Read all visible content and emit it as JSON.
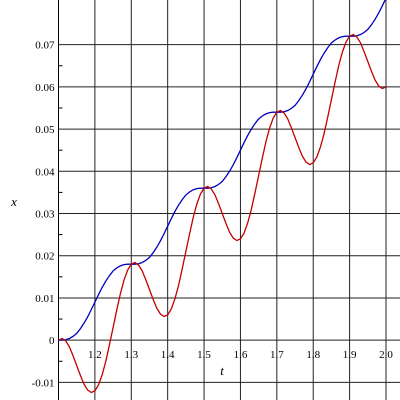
{
  "chart_data": {
    "type": "line",
    "xlabel": "t",
    "ylabel": "x",
    "x": [
      1.1,
      1.11,
      1.12,
      1.13,
      1.14,
      1.15,
      1.16,
      1.17,
      1.18,
      1.19,
      1.2,
      1.21,
      1.22,
      1.23,
      1.24,
      1.25,
      1.26,
      1.27,
      1.28,
      1.29,
      1.3,
      1.31,
      1.32,
      1.33,
      1.34,
      1.35,
      1.36,
      1.37,
      1.38,
      1.39,
      1.4,
      1.41,
      1.42,
      1.43,
      1.44,
      1.45,
      1.46,
      1.47,
      1.48,
      1.49,
      1.5,
      1.51,
      1.52,
      1.53,
      1.54,
      1.55,
      1.56,
      1.57,
      1.58,
      1.59,
      1.6,
      1.61,
      1.62,
      1.63,
      1.64,
      1.65,
      1.66,
      1.67,
      1.68,
      1.69,
      1.7,
      1.71,
      1.72,
      1.73,
      1.74,
      1.75,
      1.76,
      1.77,
      1.78,
      1.79,
      1.8,
      1.81,
      1.82,
      1.83,
      1.84,
      1.85,
      1.86,
      1.87,
      1.88,
      1.89,
      1.9,
      1.91,
      1.92,
      1.93,
      1.94,
      1.95,
      1.96,
      1.97,
      1.98,
      1.99,
      2.0
    ],
    "series": [
      {
        "color": "#0000c0",
        "values": [
          0,
          0,
          0.0001,
          0.0004,
          0.0009,
          0.0016,
          0.0027,
          0.004,
          0.0055,
          0.0072,
          0.009,
          0.0108,
          0.0125,
          0.014,
          0.0153,
          0.0164,
          0.0171,
          0.0176,
          0.0179,
          0.018,
          0.018,
          0.018,
          0.0181,
          0.0184,
          0.0189,
          0.0196,
          0.0207,
          0.022,
          0.0235,
          0.0252,
          0.027,
          0.0288,
          0.0305,
          0.032,
          0.0333,
          0.0344,
          0.0351,
          0.0356,
          0.0359,
          0.036,
          0.036,
          0.036,
          0.0361,
          0.0364,
          0.0369,
          0.0376,
          0.0387,
          0.04,
          0.0415,
          0.0432,
          0.045,
          0.0468,
          0.0485,
          0.05,
          0.0513,
          0.0524,
          0.0531,
          0.0536,
          0.0539,
          0.054,
          0.054,
          0.054,
          0.0541,
          0.0544,
          0.0549,
          0.0556,
          0.0567,
          0.058,
          0.0595,
          0.0612,
          0.063,
          0.0648,
          0.0665,
          0.068,
          0.0693,
          0.0704,
          0.0711,
          0.0716,
          0.0719,
          0.072,
          0.072,
          0.072,
          0.0721,
          0.0724,
          0.0729,
          0.0736,
          0.0747,
          0.076,
          0.0775,
          0.0792,
          0.081
        ]
      },
      {
        "color": "#c00000",
        "values": [
          0,
          0.0004,
          -0.0002,
          -0.0016,
          -0.0037,
          -0.006,
          -0.0083,
          -0.0104,
          -0.0118,
          -0.0124,
          -0.012,
          -0.0106,
          -0.0082,
          -0.005,
          -0.0011,
          0.003,
          0.0071,
          0.011,
          0.0142,
          0.0166,
          0.018,
          0.0184,
          0.0178,
          0.0164,
          0.0143,
          0.012,
          0.0097,
          0.0076,
          0.0062,
          0.0056,
          0.006,
          0.0074,
          0.0098,
          0.013,
          0.0169,
          0.021,
          0.0251,
          0.029,
          0.0322,
          0.0346,
          0.036,
          0.0364,
          0.0358,
          0.0344,
          0.0323,
          0.03,
          0.0277,
          0.0256,
          0.0242,
          0.0236,
          0.024,
          0.0254,
          0.0278,
          0.031,
          0.0349,
          0.039,
          0.0431,
          0.047,
          0.0502,
          0.0526,
          0.054,
          0.0544,
          0.0538,
          0.0524,
          0.0503,
          0.048,
          0.0457,
          0.0436,
          0.0422,
          0.0416,
          0.042,
          0.0434,
          0.0458,
          0.049,
          0.0529,
          0.057,
          0.0611,
          0.065,
          0.0682,
          0.0706,
          0.072,
          0.0724,
          0.0718,
          0.0704,
          0.0683,
          0.066,
          0.0637,
          0.0616,
          0.0602,
          0.0596,
          0.06
        ]
      }
    ],
    "xlim": [
      1.1,
      2.0
    ],
    "ylim": [
      -0.0137,
      0.0801
    ],
    "xticks": [
      1.2,
      1.3,
      1.4,
      1.5,
      1.6,
      1.7,
      1.8,
      1.9,
      {
        "value": 2,
        "label": "2.0"
      }
    ],
    "yticks": [
      -0.01,
      0,
      0.01,
      0.02,
      0.03,
      0.04,
      0.05,
      0.06,
      0.07
    ],
    "grid": true
  }
}
